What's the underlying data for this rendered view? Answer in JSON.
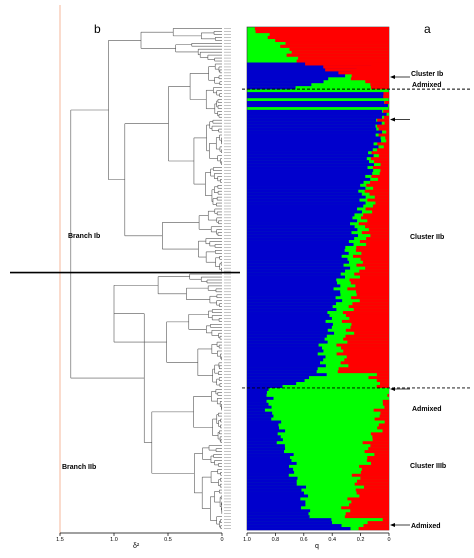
{
  "panels": {
    "left": "b",
    "right": "a"
  },
  "branches": [
    "Branch Ib",
    "Branch IIb"
  ],
  "clusters": [
    "Cluster Ib",
    "Cluster IIb",
    "Cluster IIIb"
  ],
  "admixed": [
    "Admixed",
    "Admixed",
    "Admixed"
  ],
  "colors": {
    "red": "#ff0000",
    "green": "#00ff00",
    "blue": "#0000cc",
    "ref_line": "#f4a582"
  },
  "chart_data": [
    {
      "type": "dendrogram",
      "xlabel": "δ²",
      "x_ticks": [
        "1.5",
        "1.0",
        "0.5",
        "0"
      ],
      "xlim": [
        1.5,
        0
      ],
      "reference_line_x": 1.5,
      "branch_split": "Branch Ib / Branch IIb"
    },
    {
      "type": "bar",
      "orientation": "horizontal-stacked",
      "xlabel": "q",
      "x_ticks": [
        "1.0",
        "0.8",
        "0.6",
        "0.4",
        "0.2",
        "0"
      ],
      "xlim": [
        1.0,
        0
      ],
      "series": [
        {
          "color": "#0000cc"
        },
        {
          "color": "#00ff00"
        },
        {
          "color": "#ff0000"
        }
      ],
      "sample_count": 170,
      "segments": [
        {
          "group": "Cluster Ib",
          "rows": 12,
          "red_q": [
            0.92,
            0.62
          ],
          "blue_q": [
            0.0,
            0.0
          ]
        },
        {
          "group": "Admixed",
          "rows": 9,
          "red_q": [
            0.55,
            0.08
          ],
          "blue_q": [
            0.08,
            0.62
          ]
        },
        {
          "group": "Cluster IIb",
          "rows": 96,
          "red_q": [
            0.0,
            0.35
          ],
          "blue_q": [
            0.0,
            0.5
          ]
        },
        {
          "group": "Admixed",
          "rows": 5,
          "red_q": [
            0.1,
            0.05
          ],
          "blue_q": [
            0.45,
            0.72
          ]
        },
        {
          "group": "Cluster IIIb",
          "rows": 44,
          "red_q": [
            0.0,
            0.3
          ],
          "blue_q": [
            0.88,
            0.55
          ]
        },
        {
          "group": "Admixed",
          "rows": 4,
          "red_q": [
            0.1,
            0.25
          ],
          "blue_q": [
            0.45,
            0.3
          ]
        }
      ]
    }
  ]
}
